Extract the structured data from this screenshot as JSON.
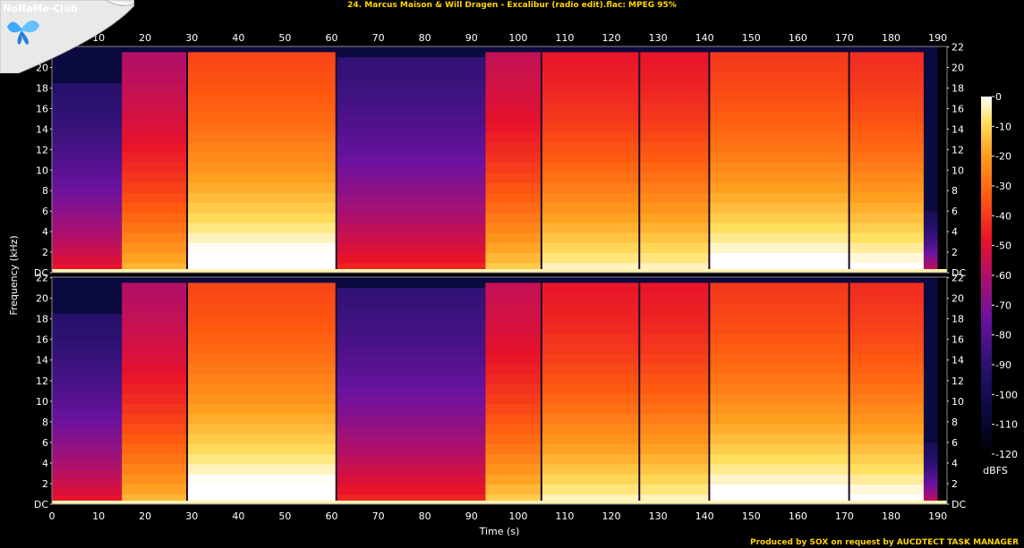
{
  "title": "24. Marcus Maison & Will Dragen - Excalibur (radio edit).flac: MPEG 95%",
  "credit": "Produced by SOX on request by AUCDTECT TASK MANAGER",
  "logo": "NoNaMe-Club",
  "chart_data": {
    "type": "heatmap",
    "xlabel": "Time (s)",
    "ylabel": "Frequency (kHz)",
    "x_ticks": [
      "0",
      "10",
      "20",
      "30",
      "40",
      "50",
      "60",
      "70",
      "80",
      "90",
      "100",
      "110",
      "120",
      "130",
      "140",
      "150",
      "160",
      "170",
      "180",
      "190"
    ],
    "y_ticks": [
      "DC",
      "2",
      "4",
      "6",
      "8",
      "10",
      "12",
      "14",
      "16",
      "18",
      "20",
      "22"
    ],
    "colorbar_label": "dBFS",
    "colorbar_ticks": [
      "0",
      "-10",
      "-20",
      "-30",
      "-40",
      "-50",
      "-60",
      "-70",
      "-80",
      "-90",
      "-100",
      "-110",
      "-120"
    ],
    "xlim": [
      0,
      192
    ],
    "ylim_khz": [
      0,
      22.05
    ],
    "channels": 2,
    "segments": [
      {
        "start": 0,
        "end": 15,
        "level": 0.35,
        "cutoff_khz": 18.5
      },
      {
        "start": 15,
        "end": 29,
        "level": 0.62,
        "cutoff_khz": 21.5
      },
      {
        "start": 29,
        "end": 61,
        "level": 0.8,
        "cutoff_khz": 21.5
      },
      {
        "start": 61,
        "end": 93,
        "level": 0.38,
        "cutoff_khz": 21.0
      },
      {
        "start": 93,
        "end": 105,
        "level": 0.65,
        "cutoff_khz": 21.5
      },
      {
        "start": 105,
        "end": 126,
        "level": 0.72,
        "cutoff_khz": 21.5
      },
      {
        "start": 126,
        "end": 141,
        "level": 0.72,
        "cutoff_khz": 21.5
      },
      {
        "start": 141,
        "end": 171,
        "level": 0.78,
        "cutoff_khz": 21.5
      },
      {
        "start": 171,
        "end": 187,
        "level": 0.76,
        "cutoff_khz": 21.5
      },
      {
        "start": 187,
        "end": 190,
        "level": 0.3,
        "cutoff_khz": 6.0
      }
    ],
    "dropouts": [
      29,
      61,
      105,
      126,
      141,
      171
    ]
  }
}
